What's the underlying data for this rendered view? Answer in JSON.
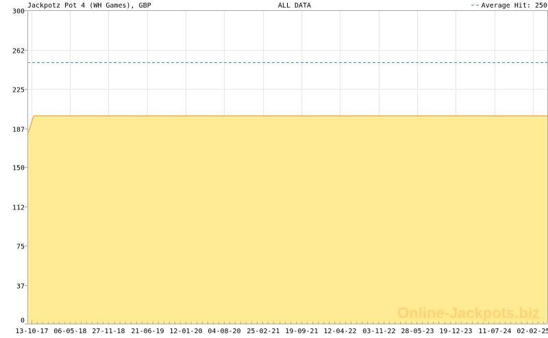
{
  "chart_data": {
    "type": "area",
    "title": "Jackpotz Pot 4 (WH Games), GBP",
    "subtitle": "ALL DATA",
    "legend": {
      "label": "Average Hit: 250",
      "placement": "top-right"
    },
    "average_hit": 250,
    "ylim": [
      0,
      300
    ],
    "yticks": [
      0,
      37,
      75,
      112,
      150,
      187,
      225,
      262,
      300
    ],
    "xlim": [
      "2017-09-21",
      "2025-04-19"
    ],
    "xtick_dates": [
      "2017-10-13",
      "2018-05-06",
      "2018-11-27",
      "2019-06-21",
      "2020-01-12",
      "2020-08-04",
      "2021-02-25",
      "2021-09-19",
      "2022-04-12",
      "2022-11-03",
      "2023-05-28",
      "2023-12-19",
      "2024-07-11",
      "2025-02-02"
    ],
    "xtick_labels": [
      "13-10-17",
      "06-05-18",
      "27-11-18",
      "21-06-19",
      "12-01-20",
      "04-08-20",
      "25-02-21",
      "19-09-21",
      "12-04-22",
      "03-11-22",
      "28-05-23",
      "19-12-23",
      "11-07-24",
      "02-02-25"
    ],
    "series": [
      {
        "x": [
          "2017-09-21",
          "2017-10-01",
          "2017-10-12",
          "2017-10-24",
          "2025-04-19"
        ],
        "y": [
          181,
          186,
          192,
          199,
          199
        ]
      }
    ],
    "grid": true,
    "colors": {
      "fill": "#ffeb91",
      "line": "#ff8c00",
      "average": "#3a8fb7",
      "grid": "#e6e6e6",
      "axis": "#aaaaaa"
    },
    "watermark": "Online-Jackpots.biz"
  }
}
